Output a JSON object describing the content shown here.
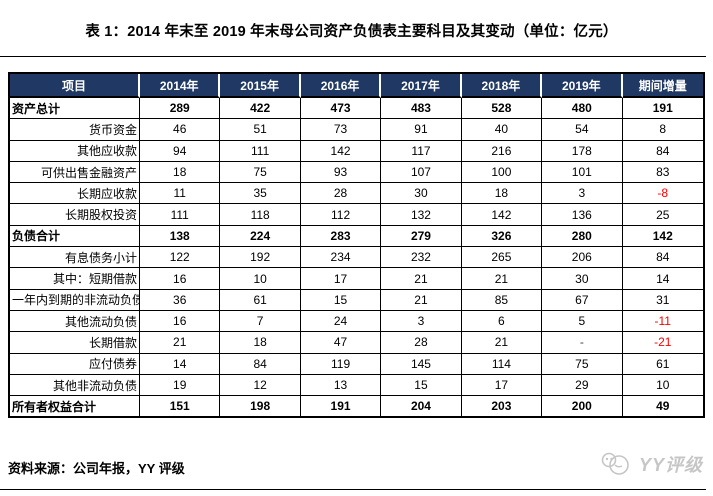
{
  "title": "表 1：2014 年末至 2019 年末母公司资产负债表主要科目及其变动（单位：亿元）",
  "source": "资料来源：公司年报，YY 评级",
  "watermark": "YY评级",
  "colors": {
    "header_bg": "#1f3864",
    "header_text": "#ffffff",
    "negative": "#ff0000",
    "border": "#000000",
    "watermark": "#c6c6c6"
  },
  "chart_data": {
    "type": "table",
    "title": "表 1：2014 年末至 2019 年末母公司资产负债表主要科目及其变动（单位：亿元）",
    "columns": [
      "项目",
      "2014年",
      "2015年",
      "2016年",
      "2017年",
      "2018年",
      "2019年",
      "期间增量"
    ],
    "rows": [
      {
        "label": "资产总计",
        "bold": true,
        "values": [
          "289",
          "422",
          "473",
          "483",
          "528",
          "480",
          "191"
        ]
      },
      {
        "label": "货币资金",
        "bold": false,
        "values": [
          "46",
          "51",
          "73",
          "91",
          "40",
          "54",
          "8"
        ]
      },
      {
        "label": "其他应收款",
        "bold": false,
        "values": [
          "94",
          "111",
          "142",
          "117",
          "216",
          "178",
          "84"
        ]
      },
      {
        "label": "可供出售金融资产",
        "bold": false,
        "values": [
          "18",
          "75",
          "93",
          "107",
          "100",
          "101",
          "83"
        ]
      },
      {
        "label": "长期应收款",
        "bold": false,
        "values": [
          "11",
          "35",
          "28",
          "30",
          "18",
          "3",
          "-8"
        ]
      },
      {
        "label": "长期股权投资",
        "bold": false,
        "values": [
          "111",
          "118",
          "112",
          "132",
          "142",
          "136",
          "25"
        ]
      },
      {
        "label": "负债合计",
        "bold": true,
        "values": [
          "138",
          "224",
          "283",
          "279",
          "326",
          "280",
          "142"
        ]
      },
      {
        "label": "有息债务小计",
        "bold": false,
        "values": [
          "122",
          "192",
          "234",
          "232",
          "265",
          "206",
          "84"
        ]
      },
      {
        "label": "其中：短期借款",
        "bold": false,
        "values": [
          "16",
          "10",
          "17",
          "21",
          "21",
          "30",
          "14"
        ]
      },
      {
        "label": "一年内到期的非流动负债",
        "bold": false,
        "values": [
          "36",
          "61",
          "15",
          "21",
          "85",
          "67",
          "31"
        ]
      },
      {
        "label": "其他流动负债",
        "bold": false,
        "values": [
          "16",
          "7",
          "24",
          "3",
          "6",
          "5",
          "-11"
        ]
      },
      {
        "label": "长期借款",
        "bold": false,
        "values": [
          "21",
          "18",
          "47",
          "28",
          "21",
          "-",
          "-21"
        ]
      },
      {
        "label": "应付债券",
        "bold": false,
        "values": [
          "14",
          "84",
          "119",
          "145",
          "114",
          "75",
          "61"
        ]
      },
      {
        "label": "其他非流动负债",
        "bold": false,
        "values": [
          "19",
          "12",
          "13",
          "15",
          "17",
          "29",
          "10"
        ]
      },
      {
        "label": "所有者权益合计",
        "bold": true,
        "values": [
          "151",
          "198",
          "191",
          "204",
          "203",
          "200",
          "49"
        ]
      }
    ]
  }
}
